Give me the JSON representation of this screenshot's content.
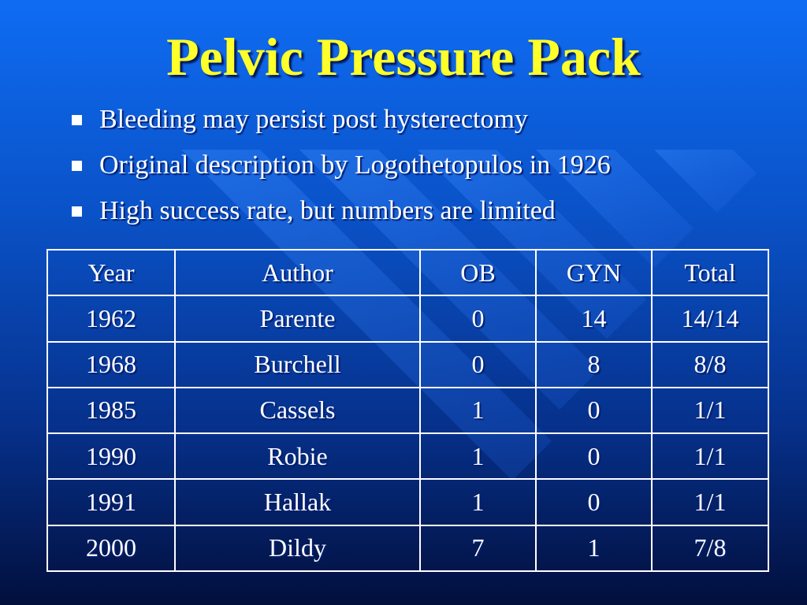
{
  "slide": {
    "title": "Pelvic Pressure Pack",
    "bullets": [
      "Bleeding may persist post hysterectomy",
      "Original description by Logothetopulos in 1926",
      "High success rate, but numbers are limited"
    ]
  },
  "table": {
    "headers": [
      "Year",
      "Author",
      "OB",
      "GYN",
      "Total"
    ],
    "rows": [
      [
        "1962",
        "Parente",
        "0",
        "14",
        "14/14"
      ],
      [
        "1968",
        "Burchell",
        "0",
        "8",
        "8/8"
      ],
      [
        "1985",
        "Cassels",
        "1",
        "0",
        "1/1"
      ],
      [
        "1990",
        "Robie",
        "1",
        "0",
        "1/1"
      ],
      [
        "1991",
        "Hallak",
        "1",
        "0",
        "1/1"
      ],
      [
        "2000",
        "Dildy",
        "7",
        "1",
        "7/8"
      ]
    ]
  },
  "colors": {
    "title": "#ffff2a",
    "text": "#ffffff",
    "background_top": "#0f6cf2",
    "background_bottom": "#020f3d"
  }
}
